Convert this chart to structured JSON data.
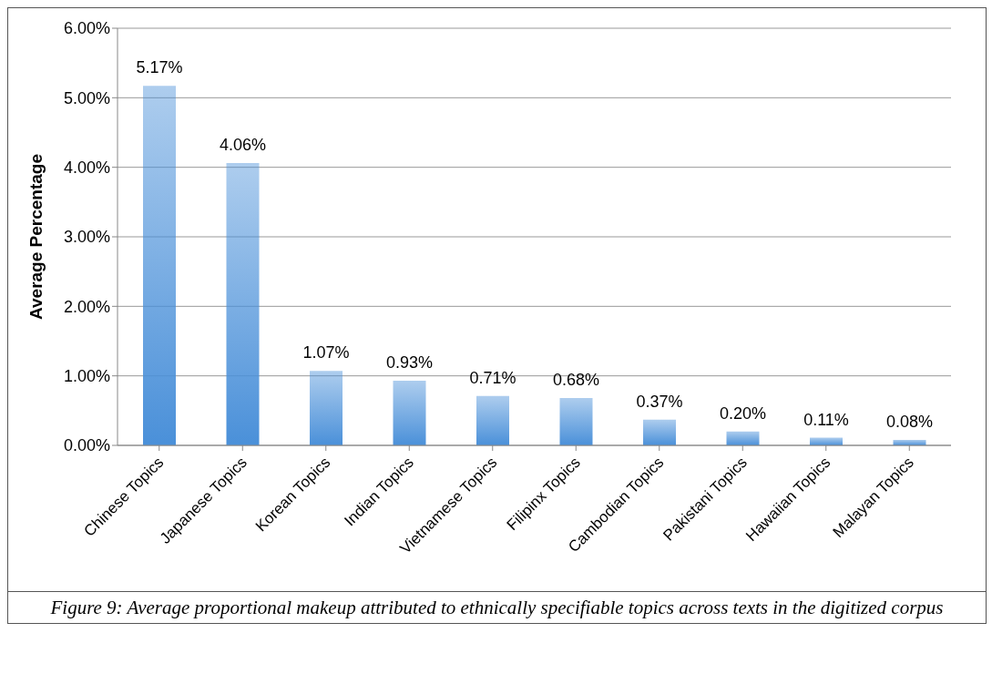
{
  "chart_data": {
    "type": "bar",
    "ylabel": "Average Percentage",
    "categories": [
      "Chinese Topics",
      "Japanese Topics",
      "Korean Topics",
      "Indian Topics",
      "Vietnamese Topics",
      "Filipinx Topics",
      "Cambodian Topics",
      "Pakistani Topics",
      "Hawaiian Topics",
      "Malayan Topics"
    ],
    "values": [
      5.17,
      4.06,
      1.07,
      0.93,
      0.71,
      0.68,
      0.37,
      0.2,
      0.11,
      0.08
    ],
    "value_labels": [
      "5.17%",
      "4.06%",
      "1.07%",
      "0.93%",
      "0.71%",
      "0.68%",
      "0.37%",
      "0.20%",
      "0.11%",
      "0.08%"
    ],
    "color": "#4a90d9",
    "ylim": [
      0,
      6
    ],
    "yticks": [
      {
        "value": 0,
        "label": "0.00%"
      },
      {
        "value": 1,
        "label": "1.00%"
      },
      {
        "value": 2,
        "label": "2.00%"
      },
      {
        "value": 3,
        "label": "3.00%"
      },
      {
        "value": 4,
        "label": "4.00%"
      },
      {
        "value": 5,
        "label": "5.00%"
      },
      {
        "value": 6,
        "label": "6.00%"
      }
    ],
    "grid": "y",
    "annotations": [
      "Figure 9: Average proportional makeup attributed to ethnically specifiable topics across texts in the digitized corpus"
    ]
  }
}
